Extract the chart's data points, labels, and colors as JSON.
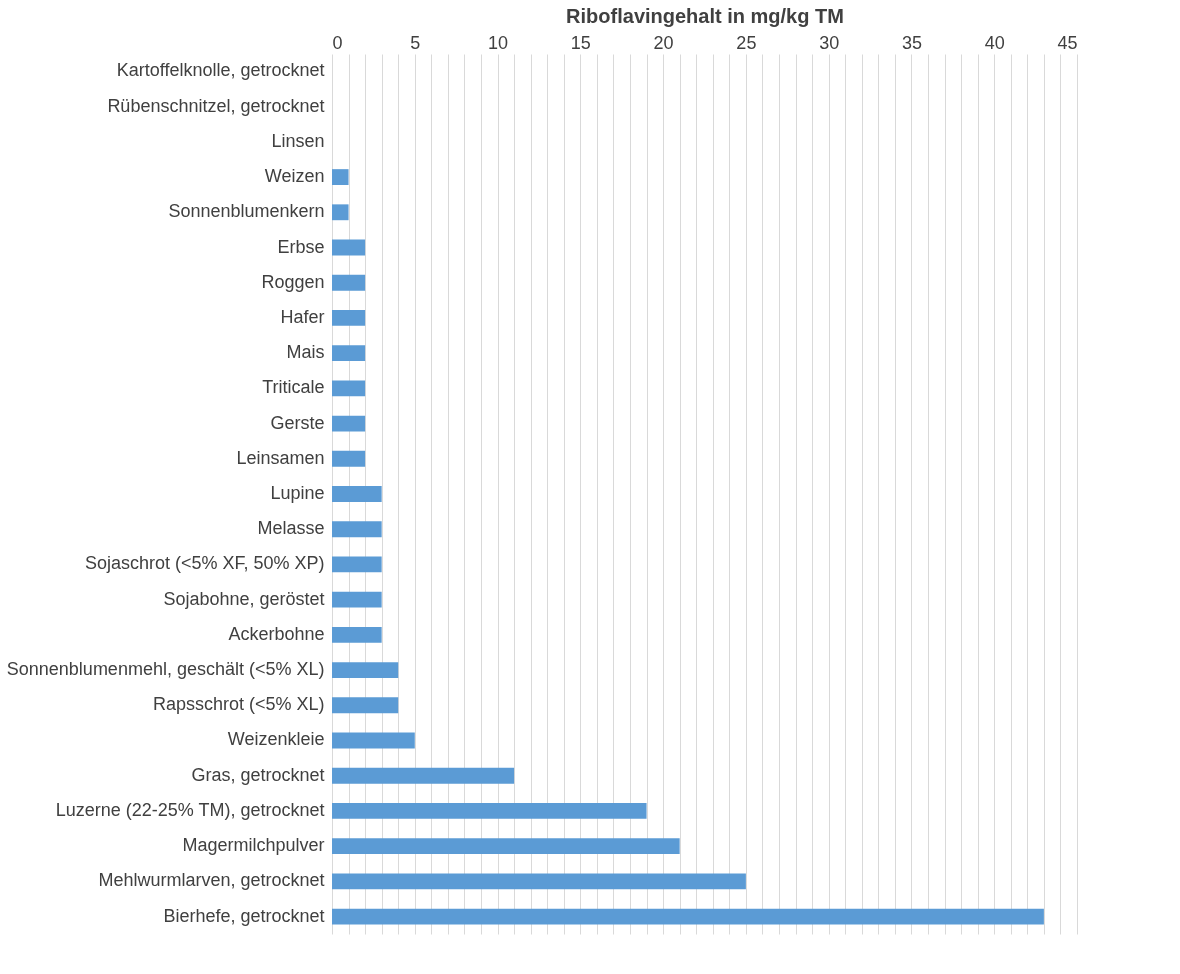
{
  "chart_data": {
    "type": "bar",
    "orientation": "horizontal",
    "xlabel": "Riboflavingehalt in mg/kg TM",
    "categories": [
      "Kartoffelknolle, getrocknet",
      "Rübenschnitzel, getrocknet",
      "Linsen",
      "Weizen",
      "Sonnenblumenkern",
      "Erbse",
      "Roggen",
      "Hafer",
      "Mais",
      "Triticale",
      "Gerste",
      "Leinsamen",
      "Lupine",
      "Melasse",
      "Sojaschrot (<5% XF, 50% XP)",
      "Sojabohne, geröstet",
      "Ackerbohne",
      "Sonnenblumenmehl, geschält (<5% XL)",
      "Rapsschrot (<5% XL)",
      "Weizenkleie",
      "Gras, getrocknet",
      "Luzerne (22-25% TM), getrocknet",
      "Magermilchpulver",
      "Mehlwurmlarven, getrocknet",
      "Bierhefe, getrocknet"
    ],
    "values": [
      0,
      0,
      0,
      1,
      1,
      2,
      2,
      2,
      2,
      2,
      2,
      2,
      3,
      3,
      3,
      3,
      3,
      4,
      4,
      5,
      11,
      19,
      21,
      25,
      43
    ],
    "color": "#5b9bd5",
    "xlim": [
      0,
      45
    ],
    "xticks": [
      0,
      {
        "value": 1,
        "label": null
      },
      {
        "value": 2,
        "label": null
      },
      {
        "value": 3,
        "label": null
      },
      {
        "value": 4,
        "label": null
      },
      5,
      {
        "value": 6,
        "label": null
      },
      {
        "value": 7,
        "label": null
      },
      {
        "value": 8,
        "label": null
      },
      {
        "value": 9,
        "label": null
      },
      10,
      {
        "value": 11,
        "label": null
      },
      {
        "value": 12,
        "label": null
      },
      {
        "value": 13,
        "label": null
      },
      {
        "value": 14,
        "label": null
      },
      15,
      {
        "value": 16,
        "label": null
      },
      {
        "value": 17,
        "label": null
      },
      {
        "value": 18,
        "label": null
      },
      {
        "value": 19,
        "label": null
      },
      20,
      {
        "value": 21,
        "label": null
      },
      {
        "value": 22,
        "label": null
      },
      {
        "value": 23,
        "label": null
      },
      {
        "value": 24,
        "label": null
      },
      25,
      {
        "value": 26,
        "label": null
      },
      {
        "value": 27,
        "label": null
      },
      {
        "value": 28,
        "label": null
      },
      {
        "value": 29,
        "label": null
      },
      30,
      {
        "value": 31,
        "label": null
      },
      {
        "value": 32,
        "label": null
      },
      {
        "value": 33,
        "label": null
      },
      {
        "value": 34,
        "label": null
      },
      35,
      {
        "value": 36,
        "label": null
      },
      {
        "value": 37,
        "label": null
      },
      {
        "value": 38,
        "label": null
      },
      {
        "value": 39,
        "label": null
      },
      40,
      {
        "value": 41,
        "label": null
      },
      {
        "value": 42,
        "label": null
      },
      {
        "value": 43,
        "label": null
      },
      {
        "value": 44,
        "label": null
      },
      45
    ],
    "grid": "x"
  }
}
